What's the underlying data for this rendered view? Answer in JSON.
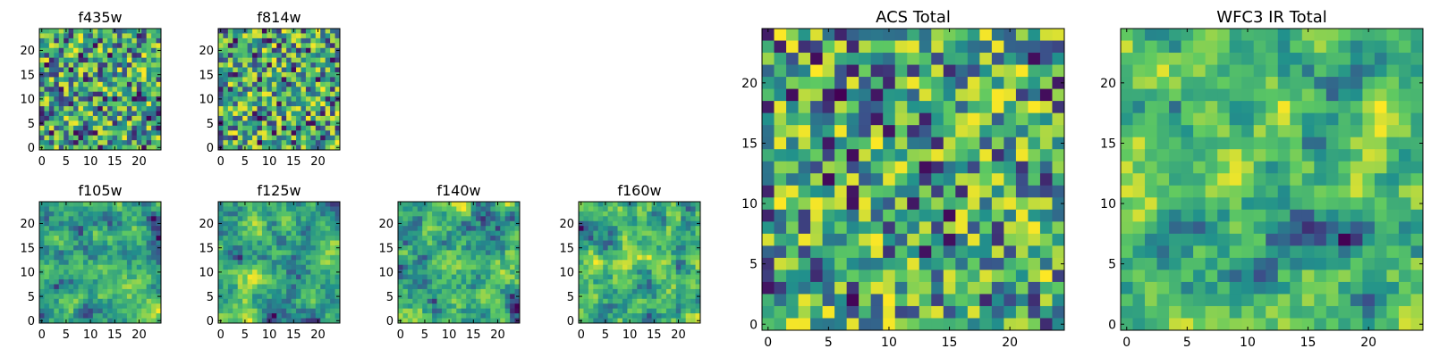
{
  "figure": {
    "colormap": [
      "#440154",
      "#3b528b",
      "#21918c",
      "#5ec962",
      "#fde725"
    ]
  },
  "chart_data": [
    {
      "id": "f435w",
      "type": "heatmap",
      "title": "f435w",
      "grid_size": 25,
      "xlim": [
        0,
        24
      ],
      "ylim": [
        0,
        24
      ],
      "xticks": [
        "0",
        "5",
        "10",
        "15",
        "20"
      ],
      "yticks": [
        "0",
        "5",
        "10",
        "15",
        "20"
      ],
      "texture": "fine-noise",
      "seed": 11
    },
    {
      "id": "f814w",
      "type": "heatmap",
      "title": "f814w",
      "grid_size": 25,
      "xlim": [
        0,
        24
      ],
      "ylim": [
        0,
        24
      ],
      "xticks": [
        "0",
        "5",
        "10",
        "15",
        "20"
      ],
      "yticks": [
        "0",
        "5",
        "10",
        "15",
        "20"
      ],
      "texture": "fine-noise",
      "seed": 23
    },
    {
      "id": "f105w",
      "type": "heatmap",
      "title": "f105w",
      "grid_size": 25,
      "xlim": [
        0,
        24
      ],
      "ylim": [
        0,
        24
      ],
      "xticks": [
        "0",
        "5",
        "10",
        "15",
        "20"
      ],
      "yticks": [
        "0",
        "5",
        "10",
        "15",
        "20"
      ],
      "texture": "smooth",
      "seed": 37
    },
    {
      "id": "f125w",
      "type": "heatmap",
      "title": "f125w",
      "grid_size": 25,
      "xlim": [
        0,
        24
      ],
      "ylim": [
        0,
        24
      ],
      "xticks": [
        "0",
        "5",
        "10",
        "15",
        "20"
      ],
      "yticks": [
        "0",
        "5",
        "10",
        "15",
        "20"
      ],
      "texture": "smooth",
      "seed": 41
    },
    {
      "id": "f140w",
      "type": "heatmap",
      "title": "f140w",
      "grid_size": 25,
      "xlim": [
        0,
        24
      ],
      "ylim": [
        0,
        24
      ],
      "xticks": [
        "0",
        "5",
        "10",
        "15",
        "20"
      ],
      "yticks": [
        "0",
        "5",
        "10",
        "15",
        "20"
      ],
      "texture": "smooth",
      "seed": 53
    },
    {
      "id": "f160w",
      "type": "heatmap",
      "title": "f160w",
      "grid_size": 25,
      "xlim": [
        0,
        24
      ],
      "ylim": [
        0,
        24
      ],
      "xticks": [
        "0",
        "5",
        "10",
        "15",
        "20"
      ],
      "yticks": [
        "0",
        "5",
        "10",
        "15",
        "20"
      ],
      "texture": "smooth",
      "seed": 67
    },
    {
      "id": "acs-total",
      "type": "heatmap",
      "title": "ACS Total",
      "grid_size": 25,
      "xlim": [
        0,
        24
      ],
      "ylim": [
        0,
        24
      ],
      "xticks": [
        "0",
        "5",
        "10",
        "15",
        "20"
      ],
      "yticks": [
        "0",
        "5",
        "10",
        "15",
        "20"
      ],
      "texture": "fine-noise",
      "seed": 79
    },
    {
      "id": "wfc3-ir-total",
      "type": "heatmap",
      "title": "WFC3 IR Total",
      "grid_size": 25,
      "xlim": [
        0,
        24
      ],
      "ylim": [
        0,
        24
      ],
      "xticks": [
        "0",
        "5",
        "10",
        "15",
        "20"
      ],
      "yticks": [
        "0",
        "5",
        "10",
        "15",
        "20"
      ],
      "texture": "smooth",
      "seed": 97
    }
  ]
}
